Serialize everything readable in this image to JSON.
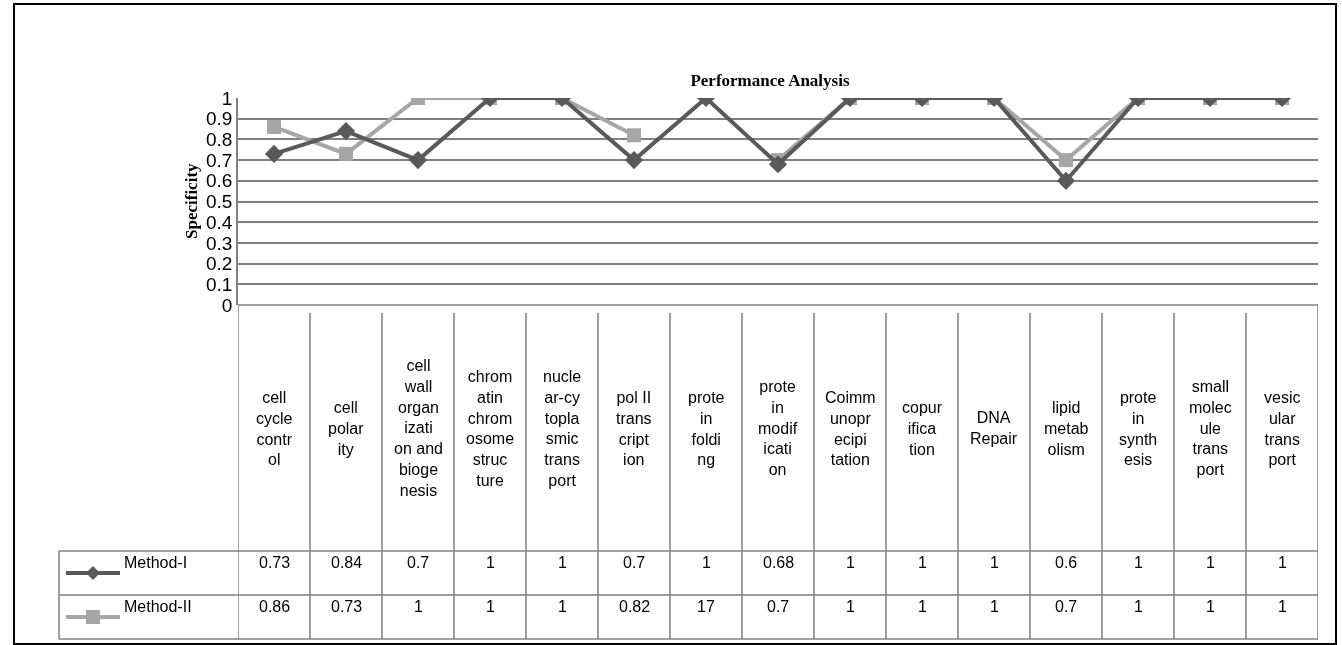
{
  "chart_data": {
    "type": "line",
    "title": "Performance Analysis",
    "ylabel": "Specificity",
    "categories": [
      "cell cycle control",
      "cell polarity",
      "cell wall organization and biogenesis",
      "chromatin chromosome structure",
      "nuclear-cytoplasmic transport",
      "pol II transcription",
      "protein folding",
      "protein modification",
      "Coimmunoprecipitation",
      "copurification",
      "DNA Repair",
      "lipid metabolism",
      "protein synthesis",
      "small molecule transport",
      "vesicular transport"
    ],
    "series": [
      {
        "name": "Method-I",
        "color": "#595959",
        "marker": "diamond",
        "values": [
          0.73,
          0.84,
          0.7,
          1,
          1,
          0.7,
          1,
          0.68,
          1,
          1,
          1,
          0.6,
          1,
          1,
          1
        ]
      },
      {
        "name": "Method-II",
        "color": "#a6a6a6",
        "marker": "square",
        "values": [
          0.86,
          0.73,
          1,
          1,
          1,
          0.82,
          null,
          0.7,
          1,
          1,
          1,
          0.7,
          1,
          1,
          1
        ],
        "value_labels": [
          "0.86",
          "0.73",
          "1",
          "1",
          "1",
          "0.82",
          "17",
          "0.7",
          "1",
          "1",
          "1",
          "0.7",
          "1",
          "1",
          "1"
        ]
      }
    ],
    "ylim": [
      0,
      1
    ],
    "yticks": [
      0,
      0.1,
      0.2,
      0.3,
      0.4,
      0.5,
      0.6,
      0.7,
      0.8,
      0.9,
      1
    ],
    "grid": "y",
    "data_labels": true,
    "line_style": "solid",
    "legend": "bottom left"
  }
}
